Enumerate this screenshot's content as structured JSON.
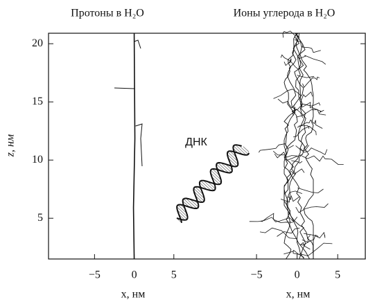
{
  "chart_data": [
    {
      "type": "track",
      "title": "Протоны в H₂O",
      "xlabel": "x, нм",
      "ylabel": "z, нм",
      "xlim": [
        -10.8,
        10
      ],
      "xticks": [
        {
          "value": -5,
          "label": "−5"
        },
        0,
        5
      ],
      "ylim": [
        1.5,
        20.9
      ],
      "yticks": [
        5,
        10,
        15,
        20
      ]
    },
    {
      "type": "track",
      "title": "Ионы углерода  в H₂O",
      "xlabel": "x, нм",
      "annotation": "ДНК",
      "xlim": [
        -10.3,
        8.4
      ],
      "xticks": [
        {
          "value": -5,
          "label": "−5"
        },
        0,
        5
      ]
    }
  ]
}
